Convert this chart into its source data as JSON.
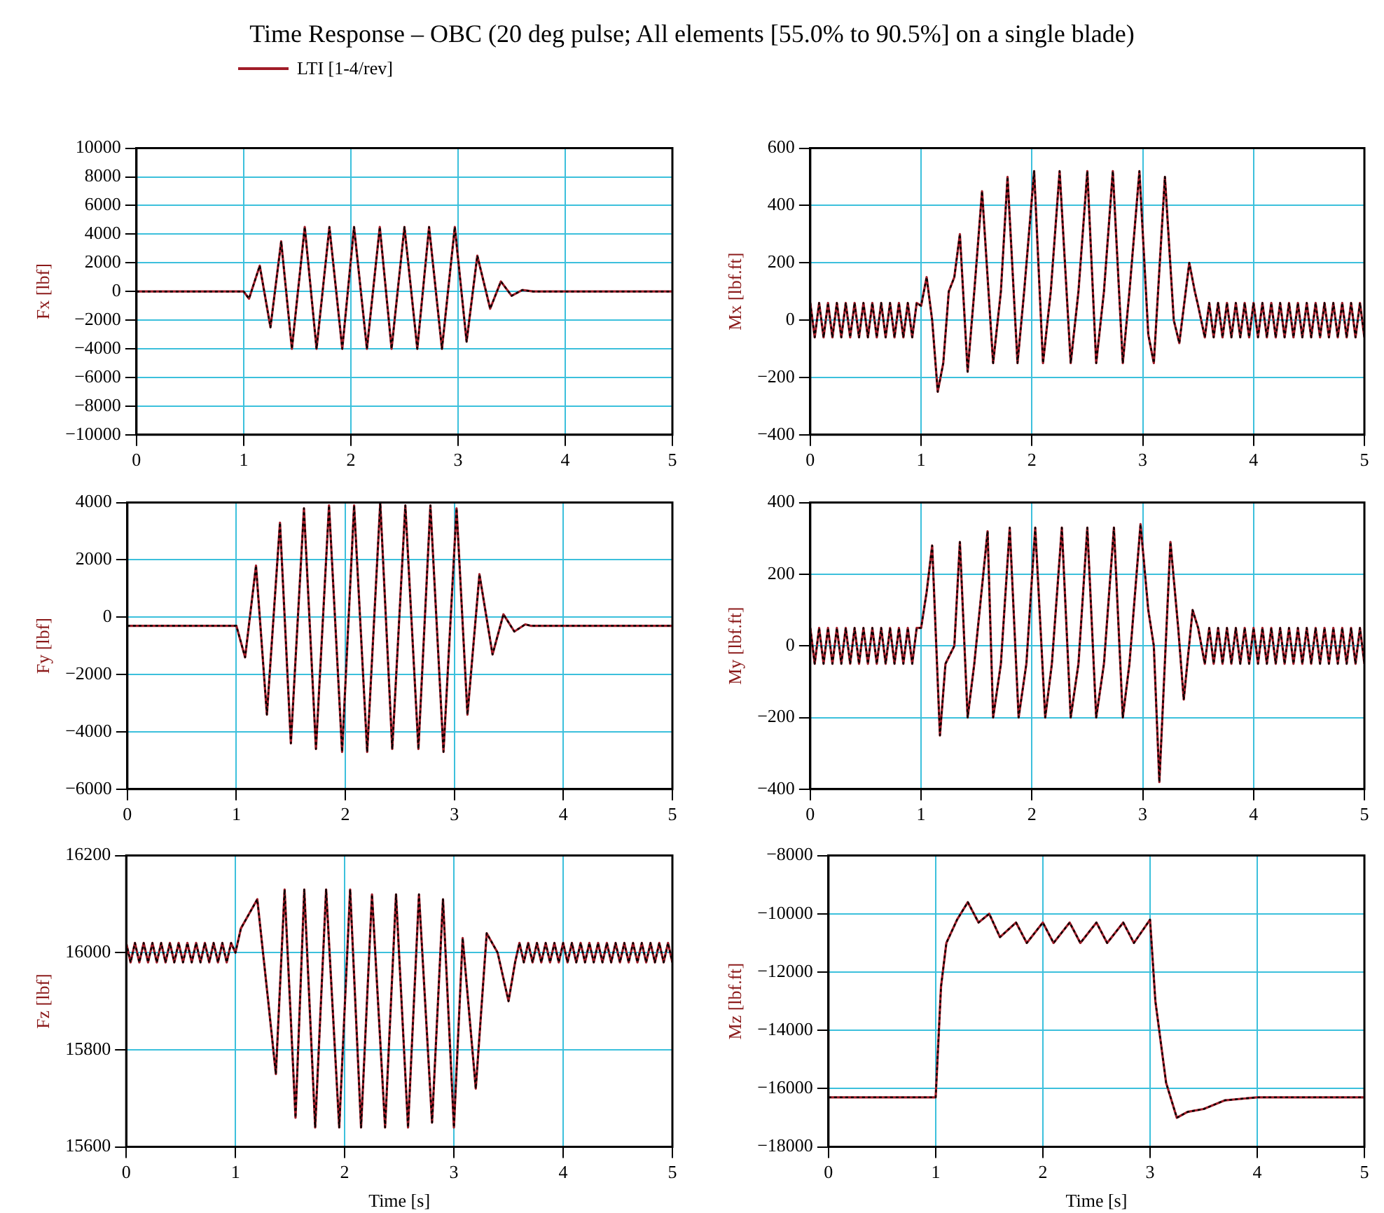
{
  "chart_data": [
    {
      "type": "line",
      "title": "Time Response – OBC (20 deg pulse; All elements [55.0% to 90.5%] on a single blade)",
      "ylabel": "Fx [lbf]",
      "legend": "top",
      "grid": true,
      "xlim": [
        0,
        5
      ],
      "xticks": [
        0,
        1,
        2,
        3,
        4,
        5
      ],
      "ylim": [
        -10000,
        10000
      ],
      "yticks": [
        -10000,
        -8000,
        -6000,
        -4000,
        -2000,
        0,
        2000,
        4000,
        6000,
        8000,
        10000
      ],
      "x": [
        0,
        1.0,
        1.05,
        1.15,
        1.25,
        1.35,
        1.45,
        1.57,
        1.68,
        1.8,
        1.92,
        2.03,
        2.15,
        2.27,
        2.38,
        2.5,
        2.62,
        2.73,
        2.85,
        2.97,
        3.08,
        3.18,
        3.3,
        3.4,
        3.5,
        3.6,
        3.7,
        5
      ],
      "series": [
        {
          "name": "LTI [1-4/rev]",
          "color": "#a01c28",
          "values": [
            0,
            0,
            -500,
            1800,
            -2500,
            3500,
            -4000,
            4500,
            -4000,
            4500,
            -4000,
            4500,
            -4000,
            4500,
            -4000,
            4500,
            -4000,
            4500,
            -4000,
            4500,
            -3500,
            2500,
            -1200,
            700,
            -300,
            100,
            0,
            0
          ]
        },
        {
          "color": "#000000",
          "line_style": "dotted",
          "values": [
            0,
            0,
            -500,
            1800,
            -2500,
            3500,
            -4000,
            4500,
            -4000,
            4500,
            -4000,
            4500,
            -4000,
            4500,
            -4000,
            4500,
            -4000,
            4500,
            -4000,
            4500,
            -3500,
            2500,
            -1200,
            700,
            -300,
            100,
            0,
            0
          ]
        }
      ]
    },
    {
      "type": "line",
      "ylabel": "Mx [lbf.ft]",
      "grid": true,
      "xlim": [
        0,
        5
      ],
      "xticks": [
        0,
        1,
        2,
        3,
        4,
        5
      ],
      "ylim": [
        -400,
        600
      ],
      "yticks": [
        -400,
        -200,
        0,
        200,
        400,
        600
      ],
      "x": [
        0,
        0.04,
        0.08,
        0.12,
        0.16,
        0.2,
        0.24,
        0.28,
        0.32,
        0.36,
        0.4,
        0.44,
        0.48,
        0.52,
        0.56,
        0.6,
        0.64,
        0.68,
        0.72,
        0.76,
        0.8,
        0.84,
        0.88,
        0.92,
        0.96,
        1.0,
        1.05,
        1.1,
        1.15,
        1.2,
        1.25,
        1.3,
        1.35,
        1.42,
        1.48,
        1.55,
        1.65,
        1.72,
        1.78,
        1.87,
        1.93,
        2.02,
        2.1,
        2.17,
        2.25,
        2.35,
        2.42,
        2.5,
        2.58,
        2.65,
        2.73,
        2.82,
        2.88,
        2.97,
        3.05,
        3.1,
        3.2,
        3.28,
        3.33,
        3.42,
        3.47,
        3.5,
        3.56,
        3.6,
        3.64,
        3.68,
        3.72,
        3.76,
        3.8,
        3.84,
        3.88,
        3.92,
        3.96,
        4.0,
        4.04,
        4.08,
        4.12,
        4.16,
        4.2,
        4.24,
        4.28,
        4.32,
        4.36,
        4.4,
        4.44,
        4.48,
        4.52,
        4.56,
        4.6,
        4.64,
        4.68,
        4.72,
        4.76,
        4.8,
        4.84,
        4.88,
        4.92,
        4.96,
        5.0
      ],
      "series": [
        {
          "color": "#a01c28",
          "values": [
            60,
            -60,
            60,
            -60,
            60,
            -60,
            60,
            -60,
            60,
            -60,
            60,
            -60,
            60,
            -60,
            60,
            -60,
            60,
            -60,
            60,
            -60,
            60,
            -60,
            60,
            -60,
            60,
            50,
            150,
            0,
            -250,
            -150,
            100,
            150,
            300,
            -180,
            100,
            450,
            -150,
            100,
            500,
            -150,
            100,
            520,
            -150,
            100,
            520,
            -150,
            100,
            520,
            -150,
            100,
            520,
            -150,
            100,
            520,
            -50,
            -150,
            500,
            0,
            -80,
            200,
            100,
            50,
            -60,
            60,
            -60,
            60,
            -60,
            60,
            -60,
            60,
            -60,
            60,
            -60,
            60,
            -60,
            60,
            -60,
            60,
            -60,
            60,
            -60,
            60,
            -60,
            60,
            -60,
            60,
            -60,
            60,
            -60,
            60,
            -60,
            60,
            -60,
            60,
            -60,
            60,
            -60,
            60,
            -60
          ]
        },
        {
          "color": "#000000",
          "line_style": "dotted",
          "values": [
            60,
            -60,
            60,
            -60,
            60,
            -60,
            60,
            -60,
            60,
            -60,
            60,
            -60,
            60,
            -60,
            60,
            -60,
            60,
            -60,
            60,
            -60,
            60,
            -60,
            60,
            -60,
            60,
            50,
            150,
            0,
            -250,
            -150,
            100,
            150,
            300,
            -180,
            100,
            450,
            -150,
            100,
            500,
            -150,
            100,
            520,
            -150,
            100,
            520,
            -150,
            100,
            520,
            -150,
            100,
            520,
            -150,
            100,
            520,
            -50,
            -150,
            500,
            0,
            -80,
            200,
            100,
            50,
            -60,
            60,
            -60,
            60,
            -60,
            60,
            -60,
            60,
            -60,
            60,
            -60,
            60,
            -60,
            60,
            -60,
            60,
            -60,
            60,
            -60,
            60,
            -60,
            60,
            -60,
            60,
            -60,
            60,
            -60,
            60,
            -60,
            60,
            -60,
            60,
            -60,
            60,
            -60,
            60,
            -60
          ]
        }
      ]
    },
    {
      "type": "line",
      "ylabel": "Fy [lbf]",
      "grid": true,
      "xlim": [
        0,
        5
      ],
      "xticks": [
        0,
        1,
        2,
        3,
        4,
        5
      ],
      "ylim": [
        -6000,
        4000
      ],
      "yticks": [
        -6000,
        -4000,
        -2000,
        0,
        2000,
        4000
      ],
      "x": [
        0,
        1.0,
        1.08,
        1.18,
        1.28,
        1.4,
        1.5,
        1.62,
        1.73,
        1.85,
        1.97,
        2.08,
        2.2,
        2.32,
        2.43,
        2.55,
        2.67,
        2.78,
        2.9,
        3.02,
        3.12,
        3.23,
        3.35,
        3.45,
        3.55,
        3.65,
        3.7,
        5
      ],
      "series": [
        {
          "color": "#a01c28",
          "values": [
            -300,
            -300,
            -1400,
            1800,
            -3400,
            3300,
            -4400,
            3800,
            -4600,
            3900,
            -4700,
            3900,
            -4700,
            4000,
            -4600,
            3900,
            -4600,
            3900,
            -4700,
            3800,
            -3400,
            1500,
            -1300,
            100,
            -500,
            -250,
            -300,
            -300
          ]
        },
        {
          "color": "#000000",
          "line_style": "dotted",
          "values": [
            -300,
            -300,
            -1400,
            1800,
            -3400,
            3300,
            -4400,
            3800,
            -4600,
            3900,
            -4700,
            3900,
            -4700,
            4000,
            -4600,
            3900,
            -4600,
            3900,
            -4700,
            3800,
            -3400,
            1500,
            -1300,
            100,
            -500,
            -250,
            -300,
            -300
          ]
        }
      ]
    },
    {
      "type": "line",
      "ylabel": "My [lbf.ft]",
      "grid": true,
      "xlim": [
        0,
        5
      ],
      "xticks": [
        0,
        1,
        2,
        3,
        4,
        5
      ],
      "ylim": [
        -400,
        400
      ],
      "yticks": [
        -400,
        -200,
        0,
        200,
        400
      ],
      "x": [
        0,
        0.04,
        0.08,
        0.12,
        0.16,
        0.2,
        0.24,
        0.28,
        0.32,
        0.36,
        0.4,
        0.44,
        0.48,
        0.52,
        0.56,
        0.6,
        0.64,
        0.68,
        0.72,
        0.76,
        0.8,
        0.84,
        0.88,
        0.92,
        0.96,
        1.0,
        1.05,
        1.1,
        1.17,
        1.22,
        1.3,
        1.35,
        1.42,
        1.48,
        1.6,
        1.65,
        1.72,
        1.8,
        1.88,
        1.95,
        2.03,
        2.12,
        2.18,
        2.27,
        2.35,
        2.42,
        2.5,
        2.58,
        2.65,
        2.74,
        2.82,
        2.88,
        2.98,
        3.05,
        3.1,
        3.15,
        3.25,
        3.32,
        3.37,
        3.45,
        3.5,
        3.56,
        3.6,
        3.64,
        3.68,
        3.72,
        3.76,
        3.8,
        3.84,
        3.88,
        3.92,
        3.96,
        4.0,
        4.04,
        4.08,
        4.12,
        4.16,
        4.2,
        4.24,
        4.28,
        4.32,
        4.36,
        4.4,
        4.44,
        4.48,
        4.52,
        4.56,
        4.6,
        4.64,
        4.68,
        4.72,
        4.76,
        4.8,
        4.84,
        4.88,
        4.92,
        4.96,
        5.0
      ],
      "series": [
        {
          "color": "#a01c28",
          "values": [
            50,
            -50,
            50,
            -50,
            50,
            -50,
            50,
            -50,
            50,
            -50,
            50,
            -50,
            50,
            -50,
            50,
            -50,
            50,
            -50,
            50,
            -50,
            50,
            -50,
            50,
            -50,
            50,
            50,
            150,
            280,
            -250,
            -50,
            0,
            290,
            -200,
            -50,
            320,
            -200,
            -50,
            330,
            -200,
            -50,
            330,
            -200,
            -50,
            330,
            -200,
            -50,
            330,
            -200,
            -50,
            330,
            -200,
            -50,
            340,
            100,
            0,
            -380,
            290,
            50,
            -150,
            100,
            50,
            -50,
            50,
            -50,
            50,
            -50,
            50,
            -50,
            50,
            -50,
            50,
            -50,
            50,
            -50,
            50,
            -50,
            50,
            -50,
            50,
            -50,
            50,
            -50,
            50,
            -50,
            50,
            -50,
            50,
            -50,
            50,
            -50,
            50,
            -50,
            50,
            -50,
            50,
            -50,
            50,
            -50
          ]
        },
        {
          "color": "#000000",
          "line_style": "dotted",
          "values": [
            50,
            -50,
            50,
            -50,
            50,
            -50,
            50,
            -50,
            50,
            -50,
            50,
            -50,
            50,
            -50,
            50,
            -50,
            50,
            -50,
            50,
            -50,
            50,
            -50,
            50,
            -50,
            50,
            50,
            150,
            280,
            -250,
            -50,
            0,
            290,
            -200,
            -50,
            320,
            -200,
            -50,
            330,
            -200,
            -50,
            330,
            -200,
            -50,
            330,
            -200,
            -50,
            330,
            -200,
            -50,
            330,
            -200,
            -50,
            340,
            100,
            0,
            -380,
            290,
            50,
            -150,
            100,
            50,
            -50,
            50,
            -50,
            50,
            -50,
            50,
            -50,
            50,
            -50,
            50,
            -50,
            50,
            -50,
            50,
            -50,
            50,
            -50,
            50,
            -50,
            50,
            -50,
            50,
            -50,
            50,
            -50,
            50,
            -50,
            50,
            -50,
            50,
            -50,
            50,
            -50,
            50,
            -50,
            50,
            -50
          ]
        }
      ]
    },
    {
      "type": "line",
      "xlabel": "Time [s]",
      "ylabel": "Fz [lbf]",
      "grid": true,
      "xlim": [
        0,
        5
      ],
      "xticks": [
        0,
        1,
        2,
        3,
        4,
        5
      ],
      "ylim": [
        15600,
        16200
      ],
      "yticks": [
        15600,
        15800,
        16000,
        16200
      ],
      "x": [
        0,
        0.04,
        0.08,
        0.12,
        0.16,
        0.2,
        0.24,
        0.28,
        0.32,
        0.36,
        0.4,
        0.44,
        0.48,
        0.52,
        0.56,
        0.6,
        0.64,
        0.68,
        0.72,
        0.76,
        0.8,
        0.84,
        0.88,
        0.92,
        0.96,
        1.0,
        1.05,
        1.1,
        1.2,
        1.3,
        1.37,
        1.45,
        1.55,
        1.63,
        1.73,
        1.83,
        1.95,
        2.05,
        2.15,
        2.25,
        2.37,
        2.47,
        2.58,
        2.68,
        2.8,
        2.9,
        3.0,
        3.08,
        3.2,
        3.3,
        3.4,
        3.5,
        3.56,
        3.6,
        3.64,
        3.68,
        3.72,
        3.76,
        3.8,
        3.84,
        3.88,
        3.92,
        3.96,
        4.0,
        4.04,
        4.08,
        4.12,
        4.16,
        4.2,
        4.24,
        4.28,
        4.32,
        4.36,
        4.4,
        4.44,
        4.48,
        4.52,
        4.56,
        4.6,
        4.64,
        4.68,
        4.72,
        4.76,
        4.8,
        4.84,
        4.88,
        4.92,
        4.96,
        5.0
      ],
      "series": [
        {
          "color": "#a01c28",
          "values": [
            16020,
            15980,
            16020,
            15980,
            16020,
            15980,
            16020,
            15980,
            16020,
            15980,
            16020,
            15980,
            16020,
            15980,
            16020,
            15980,
            16020,
            15980,
            16020,
            15980,
            16020,
            15980,
            16020,
            15980,
            16020,
            16000,
            16050,
            16070,
            16110,
            15900,
            15750,
            16130,
            15660,
            16130,
            15640,
            16130,
            15640,
            16130,
            15640,
            16120,
            15640,
            16120,
            15640,
            16120,
            15650,
            16110,
            15640,
            16030,
            15720,
            16040,
            16000,
            15900,
            15980,
            16020,
            15980,
            16020,
            15980,
            16020,
            15980,
            16020,
            15980,
            16020,
            15980,
            16020,
            15980,
            16020,
            15980,
            16020,
            15980,
            16020,
            15980,
            16020,
            15980,
            16020,
            15980,
            16020,
            15980,
            16020,
            15980,
            16020,
            15980,
            16020,
            15980,
            16020,
            15980,
            16020,
            15980,
            16020,
            15980
          ]
        },
        {
          "color": "#000000",
          "line_style": "dotted",
          "values": [
            16020,
            15980,
            16020,
            15980,
            16020,
            15980,
            16020,
            15980,
            16020,
            15980,
            16020,
            15980,
            16020,
            15980,
            16020,
            15980,
            16020,
            15980,
            16020,
            15980,
            16020,
            15980,
            16020,
            15980,
            16020,
            16000,
            16050,
            16070,
            16110,
            15900,
            15750,
            16130,
            15660,
            16130,
            15640,
            16130,
            15640,
            16130,
            15640,
            16120,
            15640,
            16120,
            15640,
            16120,
            15650,
            16110,
            15640,
            16030,
            15720,
            16040,
            16000,
            15900,
            15980,
            16020,
            15980,
            16020,
            15980,
            16020,
            15980,
            16020,
            15980,
            16020,
            15980,
            16020,
            15980,
            16020,
            15980,
            16020,
            15980,
            16020,
            15980,
            16020,
            15980,
            16020,
            15980,
            16020,
            15980,
            16020,
            15980,
            16020,
            15980,
            16020,
            15980,
            16020,
            15980,
            16020,
            15980,
            16020,
            15980
          ]
        }
      ]
    },
    {
      "type": "line",
      "xlabel": "Time [s]",
      "ylabel": "Mz [lbf.ft]",
      "grid": true,
      "xlim": [
        0,
        5
      ],
      "xticks": [
        0,
        1,
        2,
        3,
        4,
        5
      ],
      "ylim": [
        -18000,
        -8000
      ],
      "yticks": [
        -18000,
        -16000,
        -14000,
        -12000,
        -10000,
        -8000
      ],
      "x": [
        0,
        1.0,
        1.05,
        1.1,
        1.2,
        1.3,
        1.4,
        1.5,
        1.6,
        1.75,
        1.85,
        2.0,
        2.1,
        2.25,
        2.35,
        2.5,
        2.6,
        2.75,
        2.85,
        3.0,
        3.05,
        3.15,
        3.25,
        3.35,
        3.5,
        3.7,
        4.0,
        5
      ],
      "series": [
        {
          "color": "#a01c28",
          "values": [
            -16300,
            -16300,
            -12500,
            -11000,
            -10200,
            -9600,
            -10300,
            -10000,
            -10800,
            -10300,
            -11000,
            -10300,
            -11000,
            -10300,
            -11000,
            -10300,
            -11000,
            -10300,
            -11000,
            -10200,
            -13000,
            -15800,
            -17000,
            -16800,
            -16700,
            -16400,
            -16300,
            -16300
          ]
        },
        {
          "color": "#000000",
          "line_style": "dotted",
          "values": [
            -16300,
            -16300,
            -12500,
            -11000,
            -10200,
            -9600,
            -10300,
            -10000,
            -10800,
            -10300,
            -11000,
            -10300,
            -11000,
            -10300,
            -11000,
            -10300,
            -11000,
            -10300,
            -11000,
            -10200,
            -13000,
            -15800,
            -17000,
            -16800,
            -16700,
            -16400,
            -16300,
            -16300
          ]
        }
      ]
    }
  ]
}
